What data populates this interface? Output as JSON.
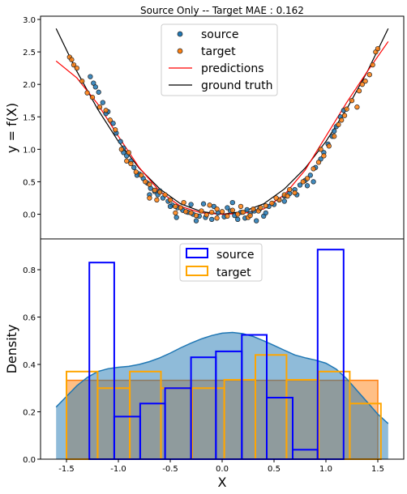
{
  "chart_data": [
    {
      "type": "scatter",
      "title": "Source Only -- Target MAE : 0.162",
      "xlabel": "",
      "ylabel": "y = f(X)",
      "xlim": [
        -1.75,
        1.75
      ],
      "ylim": [
        -0.38,
        3.05
      ],
      "yticks": [
        0.0,
        0.5,
        1.0,
        1.5,
        2.0,
        2.5,
        3.0
      ],
      "ytick_labels": [
        "0.0",
        "0.5",
        "1.0",
        "1.5",
        "2.0",
        "2.5",
        "3.0"
      ],
      "legend_position": "top-center",
      "series": [
        {
          "name": "source",
          "kind": "scatter",
          "color": "#1f77b4",
          "points": [
            [
              -1.27,
              2.12
            ],
            [
              -1.24,
              2.02
            ],
            [
              -1.22,
              1.96
            ],
            [
              -1.19,
              1.88
            ],
            [
              -1.15,
              1.72
            ],
            [
              -1.1,
              1.58
            ],
            [
              -1.05,
              1.4
            ],
            [
              -1.02,
              1.25
            ],
            [
              -0.98,
              1.12
            ],
            [
              -0.95,
              1.02
            ],
            [
              -0.92,
              0.9
            ],
            [
              -0.88,
              0.82
            ],
            [
              -0.85,
              0.72
            ],
            [
              -0.8,
              0.62
            ],
            [
              -0.76,
              0.55
            ],
            [
              -0.72,
              0.48
            ],
            [
              -0.69,
              0.4
            ],
            [
              -0.65,
              0.35
            ],
            [
              -0.62,
              0.3
            ],
            [
              -0.57,
              0.25
            ],
            [
              -0.52,
              0.2
            ],
            [
              -0.48,
              0.14
            ],
            [
              -0.43,
              0.1
            ],
            [
              -0.38,
              0.06
            ],
            [
              -0.33,
              0.03
            ],
            [
              -0.28,
              0.0
            ],
            [
              -0.22,
              -0.03
            ],
            [
              -0.16,
              -0.05
            ],
            [
              -0.1,
              -0.08
            ],
            [
              -0.04,
              0.02
            ],
            [
              0.02,
              -0.04
            ],
            [
              0.08,
              0.05
            ],
            [
              0.12,
              -0.02
            ],
            [
              0.18,
              0.03
            ],
            [
              0.22,
              -0.06
            ],
            [
              0.27,
              0.01
            ],
            [
              0.31,
              0.05
            ],
            [
              0.36,
              0.08
            ],
            [
              0.4,
              -0.03
            ],
            [
              0.45,
              0.12
            ],
            [
              0.5,
              0.15
            ],
            [
              0.55,
              0.22
            ],
            [
              0.6,
              0.28
            ],
            [
              0.65,
              0.32
            ],
            [
              0.7,
              0.38
            ],
            [
              0.75,
              0.45
            ],
            [
              0.8,
              0.52
            ],
            [
              0.85,
              0.6
            ],
            [
              0.9,
              0.72
            ],
            [
              0.95,
              0.85
            ],
            [
              0.98,
              0.95
            ],
            [
              1.02,
              1.08
            ],
            [
              1.06,
              1.2
            ],
            [
              1.1,
              1.35
            ],
            [
              1.14,
              1.5
            ],
            [
              1.17,
              1.6
            ],
            [
              -0.6,
              0.36
            ],
            [
              -0.3,
              0.15
            ],
            [
              0.1,
              0.18
            ],
            [
              -0.08,
              0.12
            ],
            [
              0.33,
              -0.1
            ],
            [
              -0.44,
              -0.05
            ],
            [
              0.6,
              0.2
            ],
            [
              0.82,
              0.44
            ],
            [
              -0.82,
              0.6
            ],
            [
              -0.7,
              0.3
            ],
            [
              0.24,
              0.07
            ],
            [
              -0.18,
              0.16
            ],
            [
              0.05,
              0.1
            ],
            [
              -0.25,
              -0.1
            ],
            [
              0.42,
              0.02
            ],
            [
              0.72,
              0.3
            ],
            [
              -0.5,
              0.12
            ],
            [
              0.15,
              -0.08
            ],
            [
              0.88,
              0.5
            ],
            [
              -0.95,
              0.95
            ],
            [
              1.08,
              1.28
            ],
            [
              -1.12,
              1.55
            ]
          ]
        },
        {
          "name": "target",
          "kind": "scatter",
          "color": "#ff7f0e",
          "points": [
            [
              -1.47,
              2.42
            ],
            [
              -1.45,
              2.38
            ],
            [
              -1.43,
              2.3
            ],
            [
              -1.4,
              2.25
            ],
            [
              -1.35,
              2.05
            ],
            [
              -1.3,
              1.87
            ],
            [
              -1.25,
              1.8
            ],
            [
              -1.12,
              1.6
            ],
            [
              -1.08,
              1.45
            ],
            [
              -1.03,
              1.3
            ],
            [
              -0.97,
              1.0
            ],
            [
              -0.92,
              0.82
            ],
            [
              -0.88,
              0.78
            ],
            [
              -0.83,
              0.65
            ],
            [
              -0.78,
              0.6
            ],
            [
              -0.74,
              0.5
            ],
            [
              -0.7,
              0.46
            ],
            [
              -0.65,
              0.37
            ],
            [
              -0.6,
              0.34
            ],
            [
              -0.55,
              0.3
            ],
            [
              -0.5,
              0.22
            ],
            [
              -0.45,
              0.12
            ],
            [
              -0.4,
              0.1
            ],
            [
              -0.35,
              0.04
            ],
            [
              -0.3,
              0.02
            ],
            [
              -0.25,
              -0.02
            ],
            [
              -0.2,
              0.05
            ],
            [
              -0.15,
              -0.01
            ],
            [
              -0.1,
              0.03
            ],
            [
              -0.05,
              -0.06
            ],
            [
              0.0,
              0.04
            ],
            [
              0.05,
              -0.03
            ],
            [
              0.1,
              0.06
            ],
            [
              0.15,
              0.0
            ],
            [
              0.2,
              0.03
            ],
            [
              0.25,
              -0.05
            ],
            [
              0.3,
              0.08
            ],
            [
              0.35,
              0.05
            ],
            [
              0.42,
              0.13
            ],
            [
              0.48,
              0.17
            ],
            [
              0.55,
              0.22
            ],
            [
              0.6,
              0.3
            ],
            [
              0.65,
              0.38
            ],
            [
              0.7,
              0.33
            ],
            [
              0.78,
              0.5
            ],
            [
              0.82,
              0.55
            ],
            [
              0.88,
              0.7
            ],
            [
              0.93,
              0.8
            ],
            [
              0.98,
              0.9
            ],
            [
              1.03,
              1.05
            ],
            [
              1.08,
              1.2
            ],
            [
              1.12,
              1.38
            ],
            [
              1.18,
              1.52
            ],
            [
              1.2,
              1.62
            ],
            [
              1.25,
              1.75
            ],
            [
              1.3,
              1.65
            ],
            [
              1.32,
              1.9
            ],
            [
              1.35,
              2.0
            ],
            [
              1.38,
              2.05
            ],
            [
              1.42,
              2.15
            ],
            [
              1.45,
              2.3
            ],
            [
              1.48,
              2.5
            ],
            [
              1.5,
              2.55
            ],
            [
              -0.63,
              0.22
            ],
            [
              -0.37,
              0.18
            ],
            [
              0.37,
              0.1
            ],
            [
              0.63,
              0.28
            ],
            [
              -0.12,
              0.14
            ],
            [
              0.18,
              0.12
            ],
            [
              -1.18,
              1.65
            ],
            [
              1.15,
              1.45
            ],
            [
              -0.9,
              0.95
            ],
            [
              0.95,
              1.0
            ],
            [
              -0.05,
              0.08
            ],
            [
              0.27,
              -0.02
            ],
            [
              -0.45,
              0.02
            ],
            [
              0.52,
              0.25
            ],
            [
              -0.7,
              0.25
            ]
          ]
        },
        {
          "name": "predictions",
          "kind": "line",
          "color": "#ff0000",
          "x": [
            -1.6,
            -1.4,
            -1.2,
            -1.0,
            -0.8,
            -0.6,
            -0.4,
            -0.2,
            0.0,
            0.2,
            0.4,
            0.6,
            0.8,
            1.0,
            1.2,
            1.4,
            1.6
          ],
          "y": [
            2.36,
            2.1,
            1.7,
            1.2,
            0.72,
            0.35,
            0.12,
            0.02,
            0.0,
            0.01,
            0.08,
            0.3,
            0.68,
            1.2,
            1.72,
            2.2,
            2.66
          ]
        },
        {
          "name": "ground truth",
          "kind": "line",
          "color": "#000000",
          "x": [
            -1.6,
            -1.4,
            -1.2,
            -1.0,
            -0.8,
            -0.6,
            -0.4,
            -0.2,
            0.0,
            0.2,
            0.4,
            0.6,
            0.8,
            1.0,
            1.2,
            1.4,
            1.6
          ],
          "y": [
            2.86,
            2.2,
            1.62,
            1.12,
            0.71,
            0.39,
            0.16,
            0.04,
            0.0,
            0.04,
            0.16,
            0.39,
            0.71,
            1.12,
            1.62,
            2.2,
            2.86
          ]
        }
      ]
    },
    {
      "type": "bar",
      "title": "",
      "xlabel": "X",
      "ylabel": "Density",
      "xlim": [
        -1.75,
        1.75
      ],
      "ylim": [
        0,
        0.93
      ],
      "xticks": [
        -1.5,
        -1.0,
        -0.5,
        0.0,
        0.5,
        1.0,
        1.5
      ],
      "xtick_labels": [
        "-1.5",
        "-1.0",
        "-0.5",
        "0.0",
        "0.5",
        "1.0",
        "1.5"
      ],
      "yticks": [
        0.0,
        0.2,
        0.4,
        0.6,
        0.8
      ],
      "ytick_labels": [
        "0.0",
        "0.2",
        "0.4",
        "0.6",
        "0.8"
      ],
      "legend_position": "top-center",
      "series": [
        {
          "name": "source",
          "kind": "histogram",
          "color": "#0000ff",
          "bin_edges": [
            -1.28,
            -1.04,
            -0.79,
            -0.55,
            -0.3,
            -0.06,
            0.19,
            0.43,
            0.68,
            0.92,
            1.17
          ],
          "values": [
            0.83,
            0.18,
            0.235,
            0.3,
            0.43,
            0.455,
            0.525,
            0.26,
            0.04,
            0.885
          ]
        },
        {
          "name": "target",
          "kind": "histogram",
          "color": "#ffa500",
          "bin_edges": [
            -1.5,
            -1.2,
            -0.89,
            -0.59,
            -0.29,
            0.02,
            0.32,
            0.62,
            0.93,
            1.23,
            1.53
          ],
          "values": [
            0.37,
            0.3,
            0.37,
            0.3,
            0.3,
            0.335,
            0.44,
            0.335,
            0.37,
            0.235
          ]
        },
        {
          "kind": "kde-area",
          "color": "#1f77b4",
          "x": [
            -1.6,
            -1.5,
            -1.4,
            -1.3,
            -1.2,
            -1.1,
            -1.0,
            -0.9,
            -0.8,
            -0.7,
            -0.6,
            -0.5,
            -0.4,
            -0.3,
            -0.2,
            -0.1,
            0.0,
            0.1,
            0.2,
            0.3,
            0.4,
            0.5,
            0.6,
            0.7,
            0.8,
            0.9,
            1.0,
            1.1,
            1.2,
            1.3,
            1.4,
            1.5,
            1.6
          ],
          "y": [
            0.22,
            0.265,
            0.31,
            0.345,
            0.37,
            0.382,
            0.388,
            0.392,
            0.4,
            0.412,
            0.428,
            0.448,
            0.47,
            0.49,
            0.508,
            0.522,
            0.532,
            0.535,
            0.53,
            0.518,
            0.5,
            0.48,
            0.46,
            0.44,
            0.428,
            0.418,
            0.405,
            0.38,
            0.34,
            0.29,
            0.24,
            0.19,
            0.15
          ]
        },
        {
          "kind": "uniform-area",
          "color": "#ff7f0e",
          "x": [
            -1.5,
            1.5
          ],
          "y": [
            0.333,
            0.333
          ]
        }
      ]
    }
  ]
}
